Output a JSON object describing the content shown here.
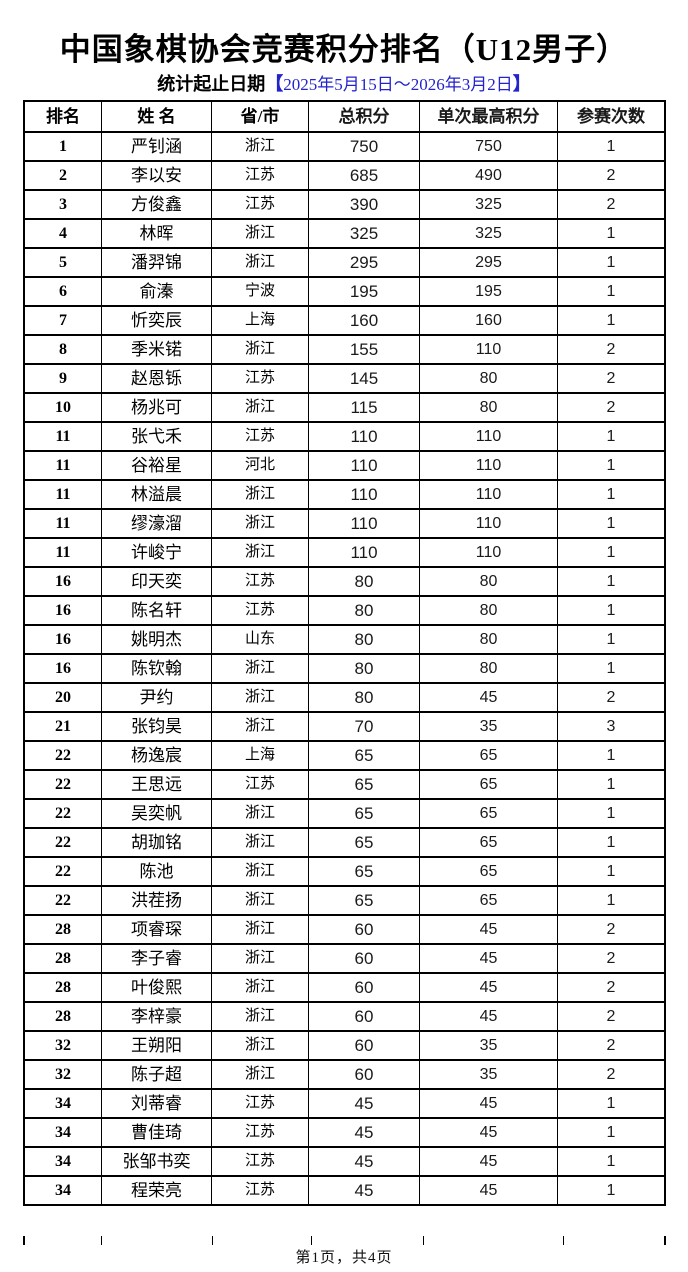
{
  "title": "中国象棋协会竞赛积分排名（U12男子）",
  "subtitle": {
    "label": "统计起止日期",
    "bracket_open": "【",
    "date": "2025年5月15日～2026年3月2日",
    "bracket_close": "】"
  },
  "table": {
    "headers": [
      "排名",
      "姓 名",
      "省/市",
      "总积分",
      "单次最高积分",
      "参赛次数"
    ],
    "rows": [
      [
        "1",
        "严钊涵",
        "浙江",
        "750",
        "750",
        "1"
      ],
      [
        "2",
        "李以安",
        "江苏",
        "685",
        "490",
        "2"
      ],
      [
        "3",
        "方俊鑫",
        "江苏",
        "390",
        "325",
        "2"
      ],
      [
        "4",
        "林晖",
        "浙江",
        "325",
        "325",
        "1"
      ],
      [
        "5",
        "潘羿锦",
        "浙江",
        "295",
        "295",
        "1"
      ],
      [
        "6",
        "俞溱",
        "宁波",
        "195",
        "195",
        "1"
      ],
      [
        "7",
        "忻奕辰",
        "上海",
        "160",
        "160",
        "1"
      ],
      [
        "8",
        "季米锘",
        "浙江",
        "155",
        "110",
        "2"
      ],
      [
        "9",
        "赵恩铄",
        "江苏",
        "145",
        "80",
        "2"
      ],
      [
        "10",
        "杨兆可",
        "浙江",
        "115",
        "80",
        "2"
      ],
      [
        "11",
        "张弋禾",
        "江苏",
        "110",
        "110",
        "1"
      ],
      [
        "11",
        "谷裕星",
        "河北",
        "110",
        "110",
        "1"
      ],
      [
        "11",
        "林溢晨",
        "浙江",
        "110",
        "110",
        "1"
      ],
      [
        "11",
        "缪濠溜",
        "浙江",
        "110",
        "110",
        "1"
      ],
      [
        "11",
        "许峻宁",
        "浙江",
        "110",
        "110",
        "1"
      ],
      [
        "16",
        "印天奕",
        "江苏",
        "80",
        "80",
        "1"
      ],
      [
        "16",
        "陈名轩",
        "江苏",
        "80",
        "80",
        "1"
      ],
      [
        "16",
        "姚明杰",
        "山东",
        "80",
        "80",
        "1"
      ],
      [
        "16",
        "陈钦翰",
        "浙江",
        "80",
        "80",
        "1"
      ],
      [
        "20",
        "尹约",
        "浙江",
        "80",
        "45",
        "2"
      ],
      [
        "21",
        "张钧昊",
        "浙江",
        "70",
        "35",
        "3"
      ],
      [
        "22",
        "杨逸宸",
        "上海",
        "65",
        "65",
        "1"
      ],
      [
        "22",
        "王思远",
        "江苏",
        "65",
        "65",
        "1"
      ],
      [
        "22",
        "吴奕帆",
        "浙江",
        "65",
        "65",
        "1"
      ],
      [
        "22",
        "胡珈铭",
        "浙江",
        "65",
        "65",
        "1"
      ],
      [
        "22",
        "陈池",
        "浙江",
        "65",
        "65",
        "1"
      ],
      [
        "22",
        "洪茬扬",
        "浙江",
        "65",
        "65",
        "1"
      ],
      [
        "28",
        "项睿琛",
        "浙江",
        "60",
        "45",
        "2"
      ],
      [
        "28",
        "李子睿",
        "浙江",
        "60",
        "45",
        "2"
      ],
      [
        "28",
        "叶俊熙",
        "浙江",
        "60",
        "45",
        "2"
      ],
      [
        "28",
        "李梓豪",
        "浙江",
        "60",
        "45",
        "2"
      ],
      [
        "32",
        "王朔阳",
        "浙江",
        "60",
        "35",
        "2"
      ],
      [
        "32",
        "陈子超",
        "浙江",
        "60",
        "35",
        "2"
      ],
      [
        "34",
        "刘蒂睿",
        "江苏",
        "45",
        "45",
        "1"
      ],
      [
        "34",
        "曹佳琦",
        "江苏",
        "45",
        "45",
        "1"
      ],
      [
        "34",
        "张邹书奕",
        "江苏",
        "45",
        "45",
        "1"
      ],
      [
        "34",
        "程荣亮",
        "江苏",
        "45",
        "45",
        "1"
      ]
    ]
  },
  "footer": "第1页，共4页",
  "colors": {
    "accent_blue": "#2323cc",
    "border_black": "#000000",
    "background": "#ffffff"
  }
}
